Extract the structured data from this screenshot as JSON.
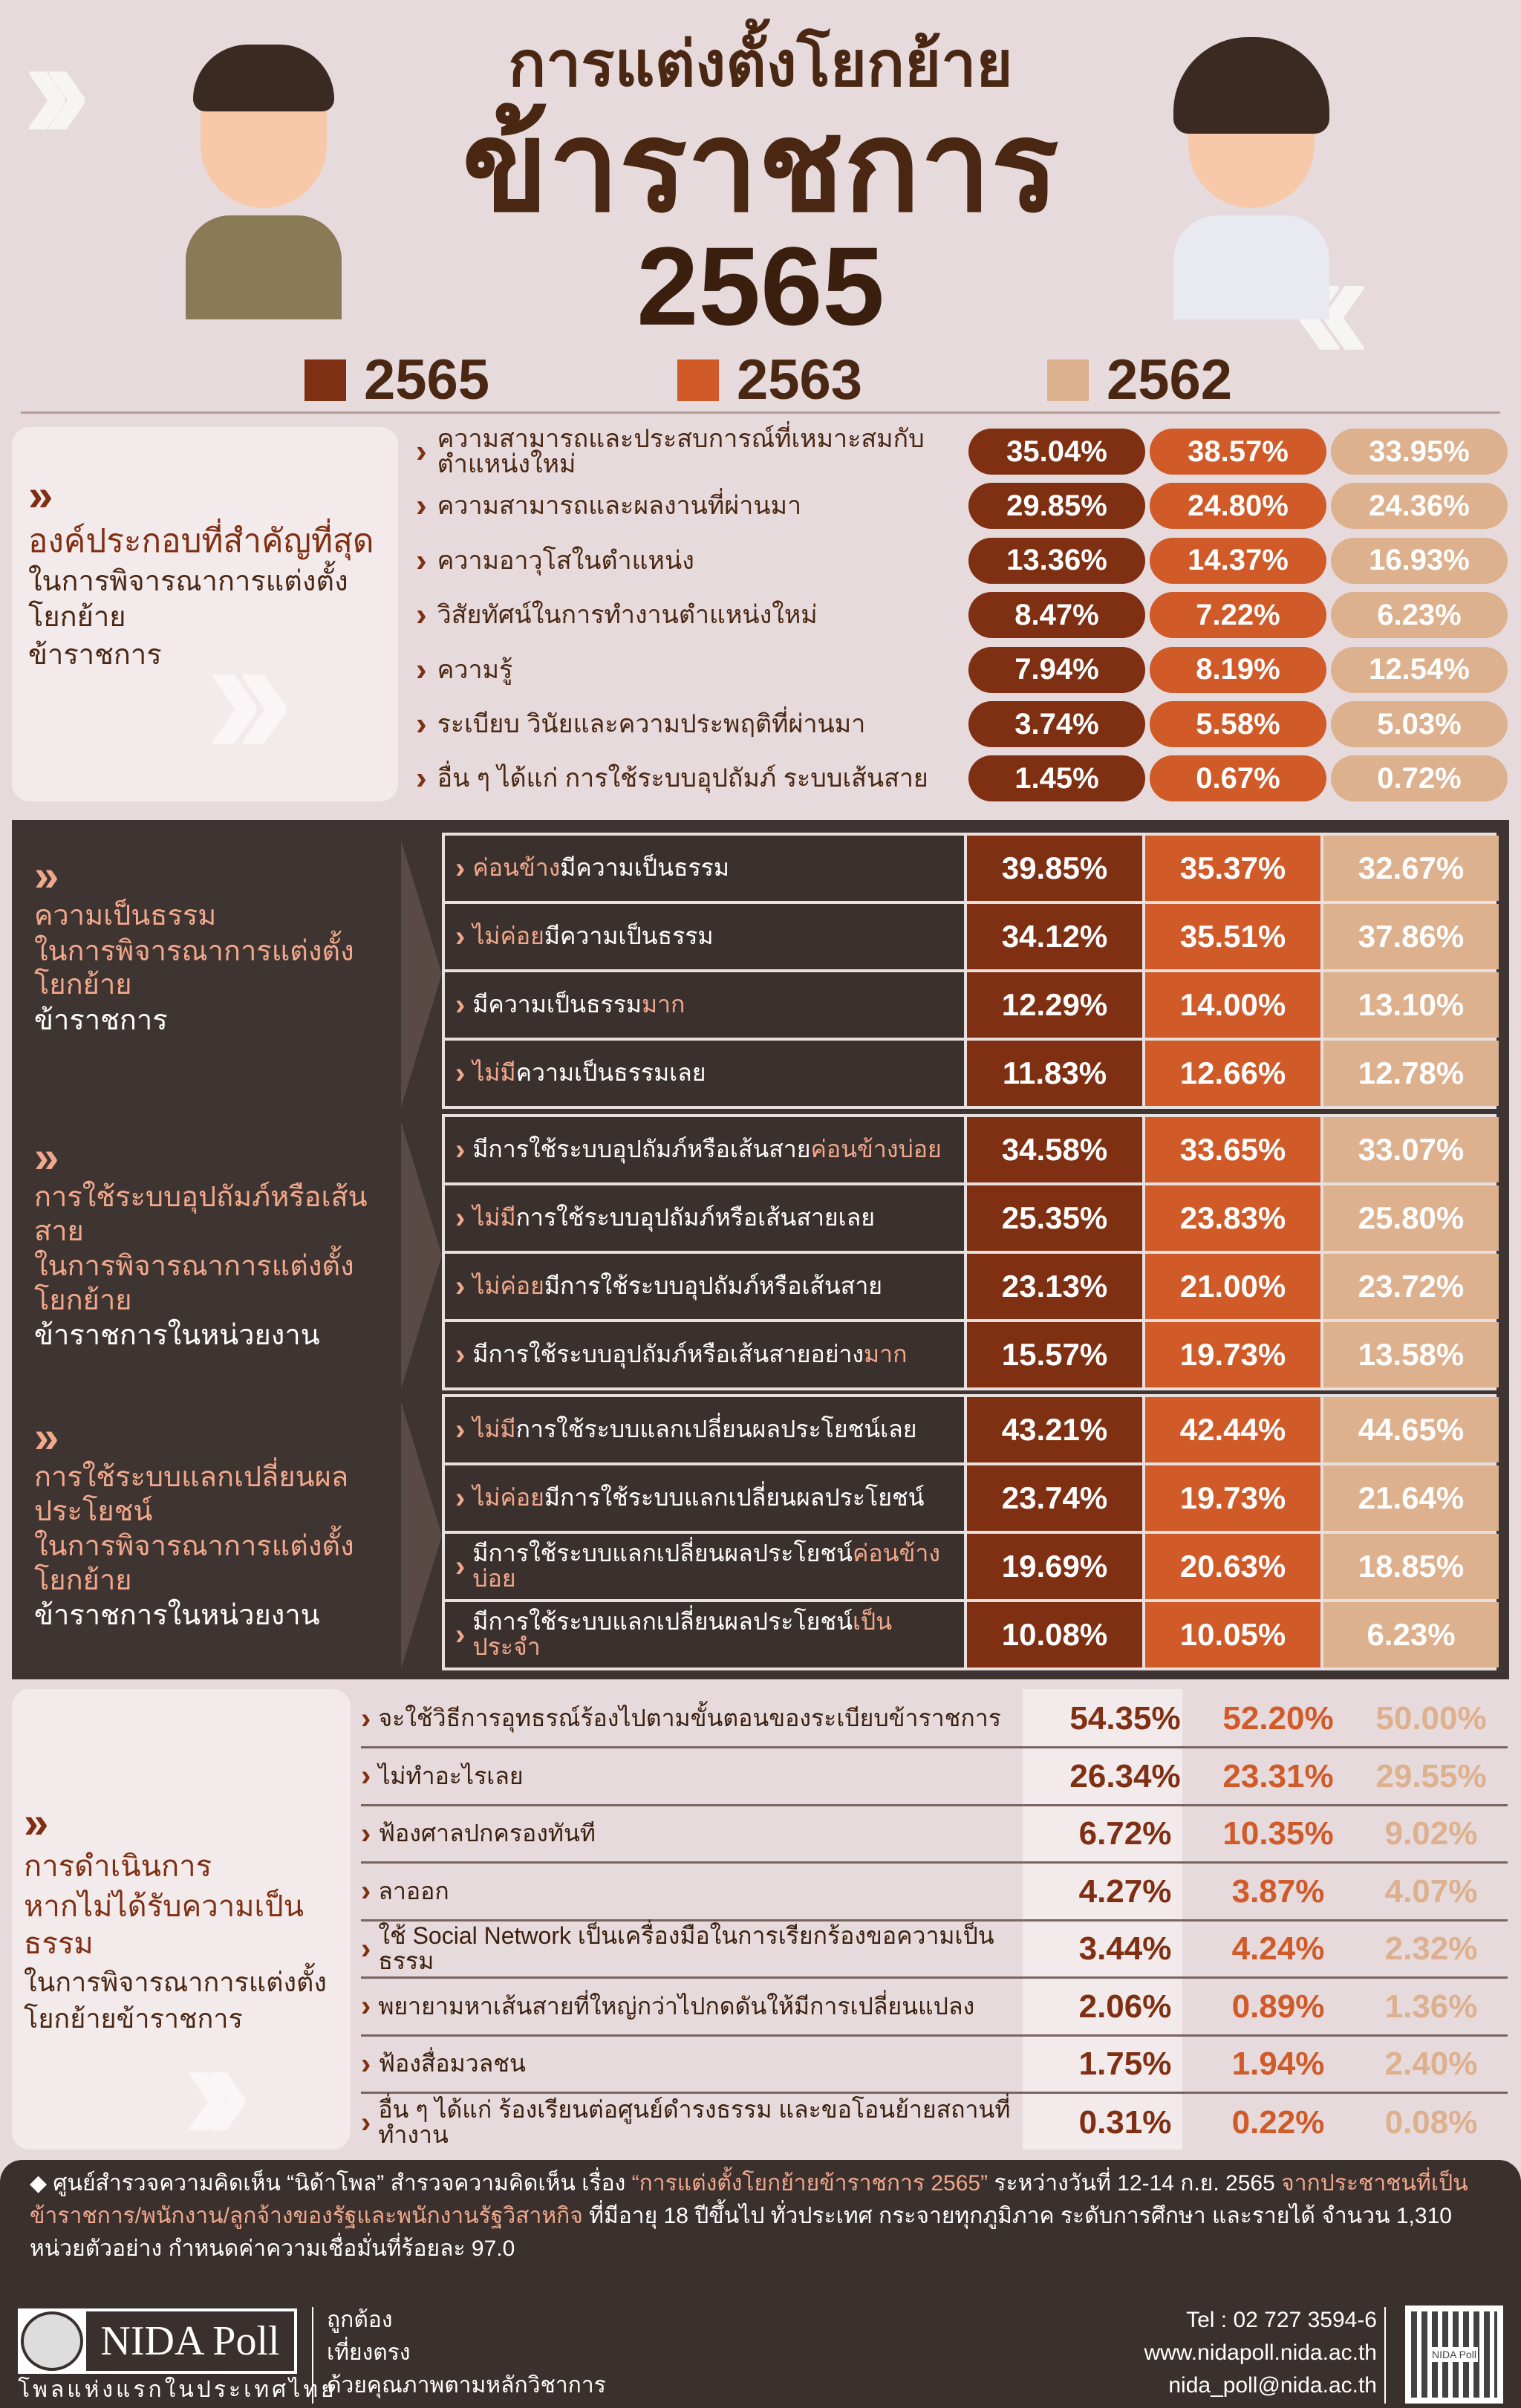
{
  "header": {
    "title_line1": "การแต่งตั้งโยกย้าย",
    "title_line2": "ข้าราชการ",
    "title_year": "2565",
    "legend": [
      {
        "label": "2565",
        "color": "#7f2f12"
      },
      {
        "label": "2563",
        "color": "#d05a28"
      },
      {
        "label": "2562",
        "color": "#ddb08e"
      }
    ]
  },
  "colors": {
    "y2565": "#7f2f12",
    "y2563": "#d05a28",
    "y2562": "#ddb08e",
    "background": "#e6dadc",
    "dark_panel": "#3e3432"
  },
  "section1": {
    "title": "องค์ประกอบที่สำคัญที่สุด",
    "subtitle": "ในการพิจารณาการแต่งตั้งโยกย้าย",
    "subtitle2": "ข้าราชการ",
    "rows": [
      {
        "label": "ความสามารถและประสบการณ์ที่เหมาะสมกับตำแหน่งใหม่",
        "values": [
          "35.04%",
          "38.57%",
          "33.95%"
        ]
      },
      {
        "label": "ความสามารถและผลงานที่ผ่านมา",
        "values": [
          "29.85%",
          "24.80%",
          "24.36%"
        ]
      },
      {
        "label": "ความอาวุโสในตำแหน่ง",
        "values": [
          "13.36%",
          "14.37%",
          "16.93%"
        ]
      },
      {
        "label": "วิสัยทัศน์ในการทำงานตำแหน่งใหม่",
        "values": [
          "8.47%",
          "7.22%",
          "6.23%"
        ]
      },
      {
        "label": "ความรู้",
        "values": [
          "7.94%",
          "8.19%",
          "12.54%"
        ]
      },
      {
        "label": "ระเบียบ วินัยและความประพฤติที่ผ่านมา",
        "values": [
          "3.74%",
          "5.58%",
          "5.03%"
        ]
      },
      {
        "label": "อื่น ๆ ได้แก่ การใช้ระบบอุปถัมภ์ ระบบเส้นสาย",
        "values": [
          "1.45%",
          "0.67%",
          "0.72%"
        ]
      }
    ]
  },
  "section2": [
    {
      "title": "ความเป็นธรรม",
      "subtitle": "ในการพิจารณาการแต่งตั้งโยกย้าย",
      "subtitle2": "ข้าราชการ",
      "rows": [
        {
          "parts": [
            {
              "t": "ค่อนข้าง",
              "hl": true
            },
            {
              "t": "มีความเป็นธรรม"
            }
          ],
          "values": [
            "39.85%",
            "35.37%",
            "32.67%"
          ]
        },
        {
          "parts": [
            {
              "t": "ไม่ค่อย",
              "hl": true
            },
            {
              "t": "มีความเป็นธรรม"
            }
          ],
          "values": [
            "34.12%",
            "35.51%",
            "37.86%"
          ]
        },
        {
          "parts": [
            {
              "t": "มีความเป็นธรรม"
            },
            {
              "t": "มาก",
              "hl": true
            }
          ],
          "values": [
            "12.29%",
            "14.00%",
            "13.10%"
          ]
        },
        {
          "parts": [
            {
              "t": "ไม่มี",
              "hl": true
            },
            {
              "t": "ความเป็นธรรมเลย"
            }
          ],
          "values": [
            "11.83%",
            "12.66%",
            "12.78%"
          ]
        }
      ]
    },
    {
      "title": "การใช้ระบบอุปถัมภ์หรือเส้นสาย",
      "subtitle": "ในการพิจารณาการแต่งตั้งโยกย้าย",
      "subtitle2": "ข้าราชการในหน่วยงาน",
      "rows": [
        {
          "parts": [
            {
              "t": "มีการใช้ระบบอุปถัมภ์หรือเส้นสาย"
            },
            {
              "t": "ค่อนข้างบ่อย",
              "hl": true
            }
          ],
          "values": [
            "34.58%",
            "33.65%",
            "33.07%"
          ]
        },
        {
          "parts": [
            {
              "t": "ไม่มี",
              "hl": true
            },
            {
              "t": "การใช้ระบบอุปถัมภ์หรือเส้นสายเลย"
            }
          ],
          "values": [
            "25.35%",
            "23.83%",
            "25.80%"
          ]
        },
        {
          "parts": [
            {
              "t": "ไม่ค่อย",
              "hl": true
            },
            {
              "t": "มีการใช้ระบบอุปถัมภ์หรือเส้นสาย"
            }
          ],
          "values": [
            "23.13%",
            "21.00%",
            "23.72%"
          ]
        },
        {
          "parts": [
            {
              "t": "มีการใช้ระบบอุปถัมภ์หรือเส้นสายอย่าง"
            },
            {
              "t": "มาก",
              "hl": true
            }
          ],
          "values": [
            "15.57%",
            "19.73%",
            "13.58%"
          ]
        }
      ]
    },
    {
      "title": "การใช้ระบบแลกเปลี่ยนผลประโยชน์",
      "subtitle": "ในการพิจารณาการแต่งตั้งโยกย้าย",
      "subtitle2": "ข้าราชการในหน่วยงาน",
      "rows": [
        {
          "parts": [
            {
              "t": "ไม่มี",
              "hl": true
            },
            {
              "t": "การใช้ระบบแลกเปลี่ยนผลประโยชน์เลย"
            }
          ],
          "values": [
            "43.21%",
            "42.44%",
            "44.65%"
          ]
        },
        {
          "parts": [
            {
              "t": "ไม่ค่อย",
              "hl": true
            },
            {
              "t": "มีการใช้ระบบแลกเปลี่ยนผลประโยชน์"
            }
          ],
          "values": [
            "23.74%",
            "19.73%",
            "21.64%"
          ]
        },
        {
          "parts": [
            {
              "t": "มีการใช้ระบบแลกเปลี่ยนผลประโยชน์"
            },
            {
              "t": "ค่อนข้างบ่อย",
              "hl": true
            }
          ],
          "values": [
            "19.69%",
            "20.63%",
            "18.85%"
          ]
        },
        {
          "parts": [
            {
              "t": "มีการใช้ระบบแลกเปลี่ยนผลประโยชน์"
            },
            {
              "t": "เป็นประจำ",
              "hl": true
            }
          ],
          "values": [
            "10.08%",
            "10.05%",
            "6.23%"
          ]
        }
      ]
    }
  ],
  "section3": {
    "title": "การดำเนินการ",
    "title2": "หากไม่ได้รับความเป็นธรรม",
    "subtitle": "ในการพิจารณาการแต่งตั้ง",
    "subtitle2": "โยกย้ายข้าราชการ",
    "rows": [
      {
        "label": "จะใช้วิธีการอุทธรณ์ร้องไปตามขั้นตอนของระเบียบข้าราชการ",
        "values": [
          "54.35%",
          "52.20%",
          "50.00%"
        ]
      },
      {
        "label": "ไม่ทำอะไรเลย",
        "values": [
          "26.34%",
          "23.31%",
          "29.55%"
        ]
      },
      {
        "label": "ฟ้องศาลปกครองทันที",
        "values": [
          "6.72%",
          "10.35%",
          "9.02%"
        ]
      },
      {
        "label": "ลาออก",
        "values": [
          "4.27%",
          "3.87%",
          "4.07%"
        ]
      },
      {
        "label": "ใช้ Social Network เป็นเครื่องมือในการเรียกร้องขอความเป็นธรรม",
        "values": [
          "3.44%",
          "4.24%",
          "2.32%"
        ]
      },
      {
        "label": "พยายามหาเส้นสายที่ใหญ่กว่าไปกดดันให้มีการเปลี่ยนแปลง",
        "values": [
          "2.06%",
          "0.89%",
          "1.36%"
        ]
      },
      {
        "label": "ฟ้องสื่อมวลชน",
        "values": [
          "1.75%",
          "1.94%",
          "2.40%"
        ]
      },
      {
        "label": "อื่น ๆ ได้แก่ ร้องเรียนต่อศูนย์ดำรงธรรม และขอโอนย้ายสถานที่ทำงาน",
        "values": [
          "0.31%",
          "0.22%",
          "0.08%"
        ]
      }
    ]
  },
  "footer": {
    "note_parts": [
      {
        "t": "ศูนย์สำรวจความคิดเห็น “นิด้าโพล” สำรวจความคิดเห็น เรื่อง "
      },
      {
        "t": "“การแต่งตั้งโยกย้ายข้าราชการ 2565”",
        "hl": true
      },
      {
        "t": " ระหว่างวันที่ 12-14 ก.ย. 2565 "
      },
      {
        "t": "จากประชาชนที่เป็นข้าราชการ/พนักงาน/ลูกจ้างของรัฐและพนักงานรัฐวิสาหกิจ",
        "hl": true
      },
      {
        "t": " ที่มีอายุ 18 ปีขึ้นไป ทั่วประเทศ กระจายทุกภูมิภาค ระดับการศึกษา และรายได้ จำนวน 1,310 หน่วยตัวอย่าง กำหนดค่าความเชื่อมั่นที่ร้อยละ 97.0"
      }
    ],
    "logo_text": "NIDA Poll",
    "logo_tagline": "โพลแห่งแรกในประเทศไทย",
    "motto": [
      "ถูกต้อง",
      "เที่ยงตรง",
      "ด้วยคุณภาพตามหลักวิชาการ"
    ],
    "tel": "Tel : 02 727 3594-6",
    "website": "www.nidapoll.nida.ac.th",
    "email": "nida_poll@nida.ac.th",
    "qr_label": "NIDA Poll"
  }
}
